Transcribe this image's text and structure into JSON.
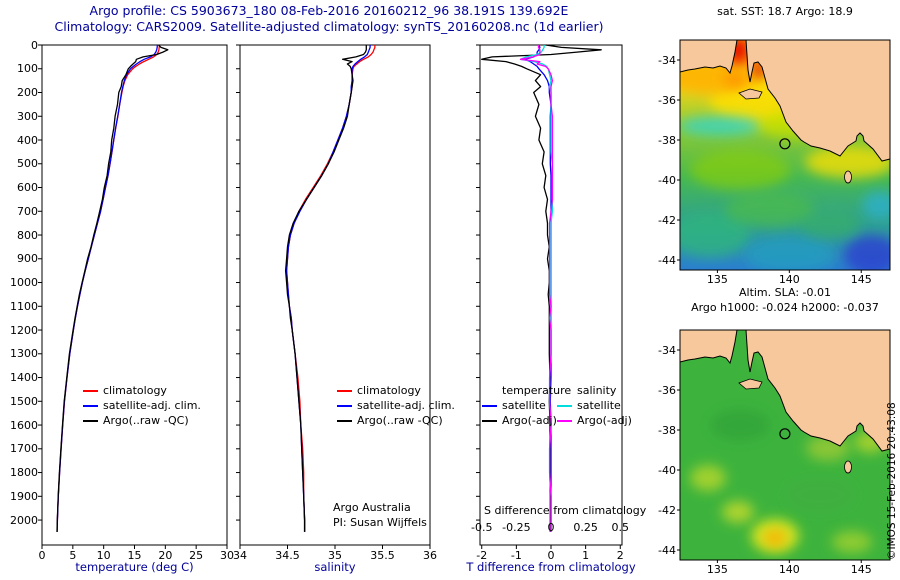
{
  "titles": {
    "line1": "Argo profile: CS 5903673_180 08-Feb-2016 20160212_96 38.191S 139.692E",
    "line2": "Climatology: CARS2009. Satellite-adjusted climatology: synTS_20160208.nc (1d earlier)"
  },
  "annotations": {
    "argo_australia": "Argo Australia",
    "pi": "PI: Susan Wijffels"
  },
  "credit": "©IMOS 15-Feb-2016 20:43:08",
  "colors": {
    "title": "#000099",
    "climatology": "#ff0000",
    "satellite_adj": "#0000ff",
    "argo": "#000000",
    "satellite_salinity": "#00dddd",
    "argo_salinity": "#ff00ff",
    "land": "#f6c89b",
    "frame": "#000000"
  },
  "chart_data": [
    {
      "type": "line",
      "id": "temperature_profile",
      "xlabel": "temperature (deg C)",
      "xlim": [
        0,
        30
      ],
      "xticks": [
        0,
        5,
        10,
        15,
        20,
        25,
        30
      ],
      "xtick_labels": [
        "0",
        "5",
        "10",
        "15",
        "20",
        "25",
        "30"
      ],
      "ylim": [
        0,
        2105
      ],
      "yticks": [
        0,
        100,
        200,
        300,
        400,
        500,
        600,
        700,
        800,
        900,
        1000,
        1100,
        1200,
        1300,
        1400,
        1500,
        1600,
        1700,
        1800,
        1900,
        2000
      ],
      "ytick_labels": [
        "0",
        "100",
        "200",
        "300",
        "400",
        "500",
        "600",
        "700",
        "800",
        "900",
        "1000",
        "1100",
        "1200",
        "1300",
        "1400",
        "1500",
        "1600",
        "1700",
        "1800",
        "1900",
        "2000"
      ],
      "depths": [
        0,
        10,
        20,
        30,
        40,
        50,
        60,
        70,
        80,
        90,
        100,
        125,
        150,
        175,
        200,
        250,
        300,
        350,
        400,
        450,
        500,
        550,
        600,
        650,
        700,
        750,
        800,
        850,
        900,
        950,
        1000,
        1050,
        1100,
        1150,
        1200,
        1300,
        1400,
        1500,
        1600,
        1700,
        1800,
        1900,
        2000,
        2050
      ],
      "series": [
        {
          "name": "climatology",
          "color": "#ff0000",
          "values": [
            19.05,
            19.0,
            18.95,
            18.85,
            18.6,
            18.1,
            17.3,
            16.5,
            15.8,
            15.2,
            14.7,
            13.9,
            13.45,
            13.15,
            12.95,
            12.6,
            12.3,
            11.95,
            11.65,
            11.35,
            11.05,
            10.7,
            10.3,
            9.9,
            9.5,
            9.0,
            8.5,
            8.0,
            7.5,
            7.0,
            6.55,
            6.15,
            5.75,
            5.4,
            5.1,
            4.5,
            4.05,
            3.65,
            3.35,
            3.1,
            2.85,
            2.65,
            2.5,
            2.45
          ]
        },
        {
          "name": "satellite-adj. clim.",
          "color": "#0000ff",
          "values": [
            18.7,
            18.68,
            18.6,
            18.45,
            18.2,
            17.6,
            16.55,
            15.9,
            15.3,
            14.8,
            14.35,
            13.7,
            13.35,
            13.1,
            12.9,
            12.6,
            12.28,
            11.93,
            11.63,
            11.33,
            11.03,
            10.7,
            10.3,
            9.9,
            9.5,
            9.0,
            8.5,
            8.0,
            7.5,
            7.0,
            6.55,
            6.15,
            5.75,
            5.4,
            5.1,
            4.5,
            4.05,
            3.63,
            3.35,
            3.1,
            2.85,
            2.65,
            2.5,
            2.45
          ]
        },
        {
          "name": "Argo(..raw -QC)",
          "color": "#000000",
          "values": [
            18.9,
            19.3,
            20.4,
            19.6,
            18.6,
            16.4,
            15.3,
            15.2,
            14.75,
            14.35,
            14.0,
            13.6,
            13.0,
            12.85,
            12.45,
            12.25,
            11.85,
            11.65,
            11.3,
            11.15,
            10.8,
            10.55,
            10.1,
            9.8,
            9.35,
            8.9,
            8.4,
            7.95,
            7.4,
            6.95,
            6.5,
            6.07,
            5.7,
            5.35,
            5.05,
            4.45,
            4.02,
            3.6,
            3.32,
            3.07,
            2.82,
            2.63,
            2.48,
            2.43
          ]
        }
      ]
    },
    {
      "type": "line",
      "id": "salinity_profile",
      "xlabel": "salinity",
      "xlim": [
        34,
        36
      ],
      "xticks": [
        34,
        34.5,
        35,
        35.5,
        36
      ],
      "xtick_labels": [
        "34",
        "34.5",
        "35",
        "35.5",
        "36"
      ],
      "ylim": [
        0,
        2105
      ],
      "depths": [
        0,
        10,
        20,
        30,
        40,
        50,
        60,
        70,
        80,
        90,
        100,
        125,
        150,
        175,
        200,
        250,
        300,
        350,
        400,
        450,
        500,
        550,
        600,
        650,
        700,
        750,
        800,
        850,
        900,
        950,
        1000,
        1050,
        1100,
        1150,
        1200,
        1300,
        1400,
        1500,
        1600,
        1700,
        1800,
        1900,
        2000,
        2050
      ],
      "series": [
        {
          "name": "climatology",
          "color": "#ff0000",
          "values": [
            35.42,
            35.42,
            35.41,
            35.4,
            35.38,
            35.35,
            35.3,
            35.26,
            35.23,
            35.2,
            35.19,
            35.18,
            35.18,
            35.18,
            35.17,
            35.15,
            35.12,
            35.08,
            35.03,
            34.98,
            34.92,
            34.85,
            34.77,
            34.69,
            34.62,
            34.57,
            34.53,
            34.51,
            34.5,
            34.49,
            34.5,
            34.51,
            34.52,
            34.54,
            34.55,
            34.58,
            34.61,
            34.63,
            34.64,
            34.66,
            34.67,
            34.67,
            34.68,
            34.68
          ]
        },
        {
          "name": "satellite-adj. clim.",
          "color": "#0000ff",
          "values": [
            35.37,
            35.37,
            35.36,
            35.35,
            35.34,
            35.31,
            35.27,
            35.24,
            35.21,
            35.19,
            35.18,
            35.18,
            35.18,
            35.17,
            35.17,
            35.15,
            35.12,
            35.08,
            35.03,
            34.98,
            34.93,
            34.86,
            34.78,
            34.7,
            34.63,
            34.57,
            34.53,
            34.51,
            34.5,
            34.49,
            34.5,
            34.51,
            34.52,
            34.54,
            34.55,
            34.58,
            34.6,
            34.62,
            34.64,
            34.65,
            34.66,
            34.67,
            34.68,
            34.68
          ]
        },
        {
          "name": "Argo(..raw -QC)",
          "color": "#000000",
          "values": [
            35.33,
            35.33,
            35.33,
            35.32,
            35.3,
            35.22,
            35.08,
            35.18,
            35.13,
            35.16,
            35.17,
            35.18,
            35.19,
            35.18,
            35.17,
            35.15,
            35.13,
            35.09,
            35.04,
            34.99,
            34.93,
            34.86,
            34.78,
            34.7,
            34.62,
            34.56,
            34.52,
            34.5,
            34.49,
            34.48,
            34.49,
            34.5,
            34.52,
            34.53,
            34.55,
            34.58,
            34.6,
            34.62,
            34.64,
            34.65,
            34.66,
            34.67,
            34.68,
            34.68
          ]
        }
      ]
    },
    {
      "type": "line",
      "id": "difference_profile",
      "xlabel": "T difference from climatology",
      "xlim": [
        -2.05,
        2.05
      ],
      "xticks": [
        -2,
        -1,
        0,
        1,
        2
      ],
      "xtick_labels": [
        "-2",
        "-1",
        "0",
        "1",
        "2"
      ],
      "ylim": [
        0,
        2105
      ],
      "s_scale": {
        "label": "S difference from climatology",
        "xlim": [
          -0.5125,
          0.5125
        ],
        "ticks": [
          -0.5,
          -0.25,
          0,
          0.25,
          0.5
        ],
        "tick_labels": [
          "-0.5",
          "-0.25",
          "0",
          "0.25",
          "0.5"
        ]
      },
      "depths": [
        0,
        10,
        20,
        30,
        40,
        50,
        60,
        70,
        80,
        90,
        100,
        125,
        150,
        175,
        200,
        250,
        300,
        350,
        400,
        450,
        500,
        550,
        600,
        650,
        700,
        750,
        800,
        850,
        900,
        950,
        1000,
        1050,
        1100,
        1150,
        1200,
        1300,
        1400,
        1500,
        1600,
        1700,
        1800,
        1900,
        2000,
        2050
      ],
      "series": [
        {
          "name": "satellite",
          "group": "temperature",
          "color": "#0000ff",
          "values": [
            -0.35,
            -0.32,
            -0.35,
            -0.4,
            -0.4,
            -0.5,
            -0.75,
            -0.6,
            -0.5,
            -0.4,
            -0.35,
            -0.2,
            -0.1,
            -0.05,
            -0.05,
            0.0,
            -0.02,
            -0.02,
            -0.02,
            -0.02,
            -0.02,
            0.0,
            0.0,
            0.0,
            0.0,
            0.0,
            0.0,
            0.0,
            0.0,
            0.0,
            0.0,
            0.0,
            0.0,
            0.0,
            0.0,
            0.0,
            0.0,
            -0.02,
            0.0,
            0.0,
            0.0,
            0.0,
            0.0,
            0.0
          ]
        },
        {
          "name": "Argo(-adj)",
          "group": "temperature",
          "color": "#000000",
          "values": [
            -0.15,
            0.3,
            1.45,
            0.75,
            0.0,
            -1.7,
            -2.0,
            -1.3,
            -1.05,
            -0.85,
            -0.7,
            -0.3,
            -0.45,
            -0.3,
            -0.5,
            -0.35,
            -0.45,
            -0.3,
            -0.35,
            -0.2,
            -0.25,
            -0.15,
            -0.2,
            -0.1,
            -0.15,
            -0.1,
            -0.1,
            -0.05,
            -0.1,
            -0.05,
            -0.05,
            -0.08,
            -0.05,
            -0.05,
            -0.05,
            -0.05,
            -0.03,
            -0.05,
            -0.03,
            -0.03,
            -0.03,
            -0.02,
            -0.02,
            -0.02
          ]
        },
        {
          "name": "satellite",
          "group": "salinity",
          "color": "#00dddd",
          "axis": "S",
          "values": [
            -0.05,
            -0.05,
            -0.06,
            -0.07,
            -0.1,
            -0.18,
            -0.22,
            -0.12,
            -0.06,
            -0.03,
            -0.02,
            -0.01,
            0.0,
            -0.01,
            0.0,
            0.0,
            0.0,
            0.0,
            0.0,
            0.0,
            0.01,
            0.01,
            0.01,
            0.01,
            0.01,
            0.0,
            0.0,
            0.0,
            0.0,
            0.0,
            0.0,
            0.0,
            0.0,
            0.0,
            0.0,
            0.0,
            -0.01,
            -0.01,
            0.0,
            -0.01,
            -0.01,
            0.0,
            0.0,
            0.0
          ]
        },
        {
          "name": "Argo(-adj)",
          "group": "salinity",
          "color": "#ff00ff",
          "axis": "S",
          "values": [
            -0.09,
            -0.09,
            -0.08,
            -0.08,
            -0.08,
            -0.13,
            -0.22,
            -0.08,
            -0.1,
            -0.04,
            -0.02,
            0.0,
            0.01,
            0.0,
            0.0,
            0.0,
            0.01,
            0.01,
            0.01,
            0.01,
            0.01,
            0.01,
            0.01,
            0.01,
            0.0,
            -0.01,
            -0.01,
            -0.01,
            -0.01,
            -0.01,
            -0.01,
            -0.01,
            0.0,
            -0.01,
            0.0,
            0.0,
            -0.01,
            -0.01,
            0.0,
            -0.01,
            -0.01,
            0.0,
            0.0,
            0.0
          ]
        }
      ]
    },
    {
      "type": "heatmap",
      "id": "sst_map",
      "title": "sat. SST: 18.7 Argo: 18.9",
      "lon_range": [
        132.4,
        147.0
      ],
      "lat_range": [
        -44.5,
        -33.0
      ],
      "xticks": [
        135,
        140,
        145
      ],
      "xtick_labels": [
        "135",
        "140",
        "145"
      ],
      "yticks": [
        -34,
        -36,
        -38,
        -40,
        -42,
        -44
      ],
      "ytick_labels": [
        "-34",
        "-36",
        "-38",
        "-40",
        "-42",
        "-44"
      ],
      "marker": {
        "lon": 139.692,
        "lat": -38.191
      },
      "base_gradient": [
        [
          0,
          "#ffc400"
        ],
        [
          0.2,
          "#e8d61e"
        ],
        [
          0.4,
          "#8cc832"
        ],
        [
          0.6,
          "#46b852"
        ],
        [
          0.8,
          "#2fa090"
        ],
        [
          1,
          "#2b7fd0"
        ]
      ],
      "field_blobs": [
        [
          105,
          60,
          75,
          28,
          "#ffdf00",
          0.85
        ],
        [
          30,
          38,
          45,
          16,
          "#ffb300",
          0.9
        ],
        [
          60,
          12,
          26,
          14,
          "#ff7a00",
          0.9
        ],
        [
          58,
          10,
          9,
          12,
          "#e00000",
          0.95
        ],
        [
          79,
          30,
          6,
          9,
          "#e00000",
          0.9
        ],
        [
          55,
          40,
          12,
          6,
          "#ff8800",
          0.8
        ],
        [
          40,
          86,
          42,
          10,
          "#2fd5d5",
          0.75
        ],
        [
          120,
          85,
          40,
          14,
          "#b8e000",
          0.7
        ],
        [
          170,
          122,
          45,
          16,
          "#ffe000",
          0.75
        ],
        [
          60,
          130,
          50,
          20,
          "#8fd000",
          0.6
        ],
        [
          30,
          195,
          40,
          22,
          "#2db87a",
          0.7
        ],
        [
          110,
          215,
          45,
          18,
          "#1f9fc0",
          0.75
        ],
        [
          192,
          215,
          28,
          20,
          "#2a3fd0",
          0.8
        ],
        [
          200,
          165,
          18,
          14,
          "#28b0d8",
          0.7
        ],
        [
          90,
          170,
          45,
          18,
          "#4fbf3f",
          0.6
        ],
        [
          150,
          185,
          30,
          14,
          "#35b060",
          0.6
        ]
      ]
    },
    {
      "type": "heatmap",
      "id": "sla_map",
      "title_lines": [
        "Altim. SLA: -0.01",
        "Argo h1000: -0.024 h2000: -0.037"
      ],
      "lon_range": [
        132.4,
        147.0
      ],
      "lat_range": [
        -44.5,
        -33.0
      ],
      "xticks": [
        135,
        140,
        145
      ],
      "xtick_labels": [
        "135",
        "140",
        "145"
      ],
      "yticks": [
        -34,
        -36,
        -38,
        -40,
        -42,
        -44
      ],
      "ytick_labels": [
        "-34",
        "-36",
        "-38",
        "-40",
        "-42",
        "-44"
      ],
      "marker": {
        "lon": 139.692,
        "lat": -38.191
      },
      "base_color": "#3db33d",
      "field_blobs": [
        [
          95,
          206,
          24,
          17,
          "#e0e81e",
          0.9
        ],
        [
          95,
          208,
          11,
          8,
          "#ffb000",
          0.9
        ],
        [
          28,
          148,
          18,
          13,
          "#b8d82a",
          0.8
        ],
        [
          58,
          182,
          16,
          11,
          "#c8dc2a",
          0.8
        ],
        [
          148,
          118,
          22,
          13,
          "#a8cf33",
          0.7
        ],
        [
          190,
          112,
          16,
          11,
          "#c8dc2a",
          0.7
        ],
        [
          140,
          62,
          26,
          14,
          "#79c63c",
          0.8
        ],
        [
          172,
          212,
          20,
          11,
          "#b8d82a",
          0.65
        ],
        [
          60,
          95,
          30,
          16,
          "#2f9f37",
          0.6
        ],
        [
          140,
          165,
          35,
          18,
          "#3fae3f",
          0.6
        ],
        [
          105,
          30,
          30,
          12,
          "#57bb42",
          0.7
        ],
        [
          185,
          60,
          14,
          16,
          "#8fcc3a",
          0.6
        ]
      ]
    }
  ]
}
